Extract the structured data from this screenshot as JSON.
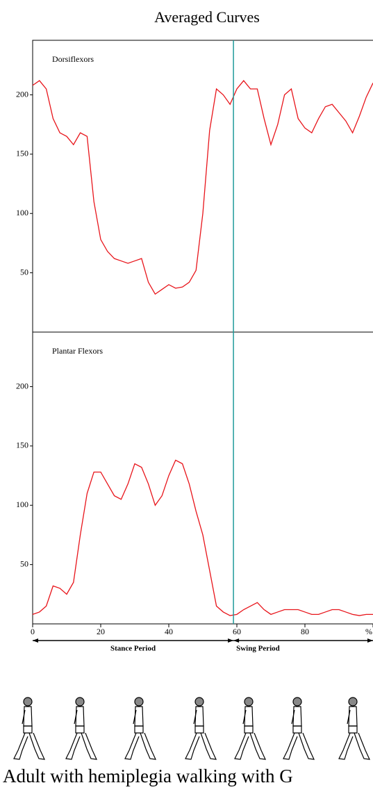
{
  "title": "Averaged Curves",
  "divider_x": 59,
  "periods": [
    {
      "label": "Stance Period",
      "start": 0,
      "end": 59
    },
    {
      "label": "Swing Period",
      "start": 59,
      "end": 100
    }
  ],
  "caption": "Adult with hemiplegia walking with G",
  "chart_data": [
    {
      "type": "line",
      "title": "Dorsiflexors",
      "color": "#e8141a",
      "x": [
        0,
        2,
        4,
        6,
        8,
        10,
        12,
        14,
        16,
        18,
        20,
        22,
        24,
        26,
        28,
        30,
        32,
        34,
        36,
        38,
        40,
        42,
        44,
        46,
        48,
        50,
        52,
        54,
        56,
        58,
        60,
        62,
        64,
        66,
        68,
        70,
        72,
        74,
        76,
        78,
        80,
        82,
        84,
        86,
        88,
        90,
        92,
        94,
        96,
        98,
        100
      ],
      "values": [
        208,
        212,
        205,
        180,
        168,
        165,
        158,
        168,
        165,
        110,
        78,
        68,
        62,
        60,
        58,
        60,
        62,
        42,
        32,
        36,
        40,
        37,
        38,
        42,
        52,
        100,
        170,
        205,
        200,
        192,
        205,
        212,
        205,
        205,
        180,
        158,
        175,
        200,
        205,
        180,
        172,
        168,
        180,
        190,
        192,
        185,
        178,
        168,
        182,
        198,
        210
      ],
      "xlim": [
        0,
        100
      ],
      "ylim": [
        0,
        246
      ],
      "yticks": [
        50,
        100,
        150,
        200
      ]
    },
    {
      "type": "line",
      "title": "Plantar Flexors",
      "color": "#e8141a",
      "x": [
        0,
        2,
        4,
        6,
        8,
        10,
        12,
        14,
        16,
        18,
        20,
        22,
        24,
        26,
        28,
        30,
        32,
        34,
        36,
        38,
        40,
        42,
        44,
        46,
        48,
        50,
        52,
        54,
        56,
        58,
        60,
        62,
        64,
        66,
        68,
        70,
        72,
        74,
        76,
        78,
        80,
        82,
        84,
        86,
        88,
        90,
        92,
        94,
        96,
        98,
        100
      ],
      "values": [
        8,
        10,
        15,
        32,
        30,
        25,
        35,
        75,
        110,
        128,
        128,
        118,
        108,
        105,
        118,
        135,
        132,
        118,
        100,
        108,
        125,
        138,
        135,
        118,
        95,
        75,
        45,
        15,
        10,
        7,
        8,
        12,
        15,
        18,
        12,
        8,
        10,
        12,
        12,
        12,
        10,
        8,
        8,
        10,
        12,
        12,
        10,
        8,
        7,
        8,
        8
      ],
      "xlim": [
        0,
        100
      ],
      "ylim": [
        0,
        246
      ],
      "yticks": [
        50,
        100,
        150,
        200
      ],
      "xticks": [
        0,
        20,
        40,
        60,
        80,
        {
          "value": 100,
          "label": "%"
        }
      ]
    }
  ]
}
